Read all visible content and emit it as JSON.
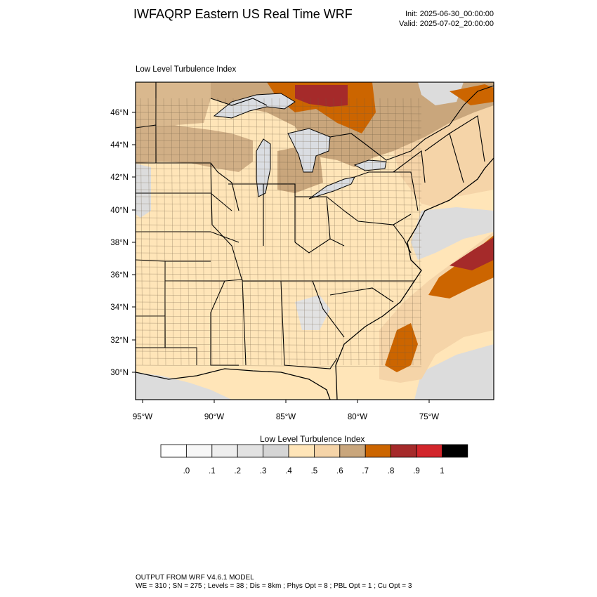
{
  "header": {
    "title": "IWFAQRP Eastern US Real Time WRF",
    "init": "Init: 2025-06-30_00:00:00",
    "valid": "Valid: 2025-07-02_20:00:00"
  },
  "plot": {
    "title": "Low Level Turbulence Index",
    "lat_labels": [
      "46°N",
      "44°N",
      "42°N",
      "40°N",
      "38°N",
      "36°N",
      "34°N",
      "32°N",
      "30°N"
    ],
    "lon_labels": [
      "95°W",
      "90°W",
      "85°W",
      "80°W",
      "75°W"
    ]
  },
  "colorbar": {
    "title": "Low Level Turbulence Index",
    "tick_labels": [
      ".0",
      ".1",
      ".2",
      ".3",
      ".4",
      ".5",
      ".6",
      ".7",
      ".8",
      ".9",
      "1"
    ],
    "colors": [
      "#ffffff",
      "#f7f7f7",
      "#eeeeee",
      "#e2e2e2",
      "#d5d5d5",
      "#ffe5b8",
      "#f5d4a8",
      "#c9a67c",
      "#cc6500",
      "#a52a2a",
      "#d2252b",
      "#000000"
    ]
  },
  "footer": {
    "line1": "OUTPUT FROM WRF V4.6.1 MODEL",
    "line2": "WE = 310 ; SN = 275 ; Levels = 38 ; Dis = 8km ; Phys Opt = 8 ; PBL Opt = 1 ; Cu Opt = 3"
  }
}
